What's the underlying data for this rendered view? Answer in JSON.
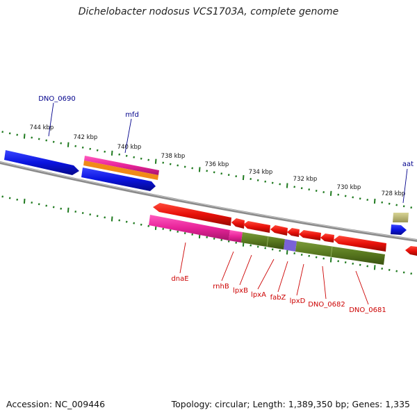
{
  "title": "Dichelobacter nodosus VCS1703A, complete genome",
  "footer": {
    "accession": "Accession: NC_009446",
    "summary": "Topology: circular; Length: 1,389,350 bp; Genes: 1,335"
  },
  "colors": {
    "forward_gene": "#0a14e0",
    "reverse_gene": "#e8100a",
    "forward_label": "#00008b",
    "reverse_label": "#cc0000",
    "tick": "#1f7a1f",
    "backbone": "#8a8a8a"
  },
  "scale_labels": [
    "744 kbp",
    "742 kbp",
    "740 kbp",
    "738 kbp",
    "736 kbp",
    "734 kbp",
    "732 kbp",
    "730 kbp",
    "728 kbp"
  ],
  "forward_gene_labels": [
    "DNO_0690",
    "mfd",
    "aat"
  ],
  "reverse_gene_labels": [
    "dnaE",
    "rnhB",
    "lpxB",
    "lpxA",
    "fabZ",
    "lpxD",
    "DNO_0682",
    "DNO_0681"
  ]
}
